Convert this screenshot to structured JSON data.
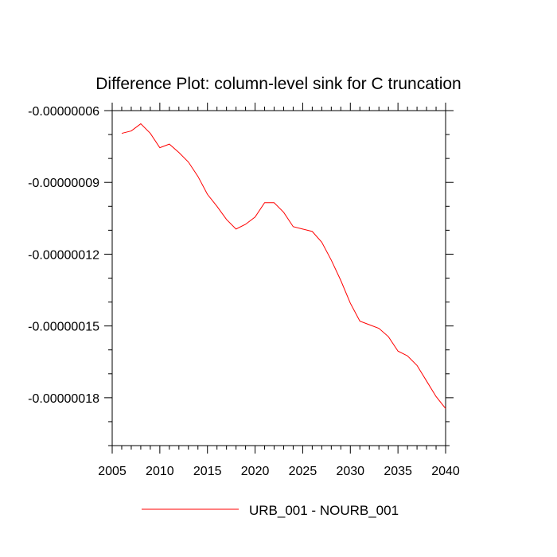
{
  "chart_data": {
    "type": "line",
    "title": "Difference Plot: column-level sink for C truncation",
    "xlabel": "",
    "ylabel": "",
    "xlim": [
      2005,
      2040
    ],
    "ylim": [
      -2e-07,
      -6e-08
    ],
    "x_ticks": [
      2005,
      2010,
      2015,
      2020,
      2025,
      2030,
      2035,
      2040
    ],
    "x_tick_labels": [
      "2005",
      "2010",
      "2015",
      "2020",
      "2025",
      "2030",
      "2035",
      "2040"
    ],
    "y_ticks": [
      -6e-08,
      -9e-08,
      -1.2e-07,
      -1.5e-07,
      -1.8e-07
    ],
    "y_tick_labels": [
      "-0.00000006",
      "-0.00000009",
      "-0.00000012",
      "-0.00000015",
      "-0.00000018"
    ],
    "grid": false,
    "legend_position": "bottom",
    "series": [
      {
        "name": "URB_001 - NOURB_001",
        "color": "#ff0000",
        "x": [
          2006,
          2007,
          2008,
          2009,
          2010,
          2011,
          2012,
          2013,
          2014,
          2015,
          2016,
          2017,
          2018,
          2019,
          2020,
          2021,
          2022,
          2023,
          2024,
          2025,
          2026,
          2027,
          2028,
          2029,
          2030,
          2031,
          2032,
          2033,
          2034,
          2035,
          2036,
          2037,
          2038,
          2039,
          2040
        ],
        "y": [
          -6.95e-08,
          -6.85e-08,
          -6.55e-08,
          -6.95e-08,
          -7.55e-08,
          -7.4e-08,
          -7.75e-08,
          -8.15e-08,
          -8.75e-08,
          -9.5e-08,
          -1e-07,
          -1.055e-07,
          -1.095e-07,
          -1.075e-07,
          -1.045e-07,
          -9.85e-08,
          -9.85e-08,
          -1.025e-07,
          -1.085e-07,
          -1.095e-07,
          -1.105e-07,
          -1.15e-07,
          -1.225e-07,
          -1.31e-07,
          -1.405e-07,
          -1.48e-07,
          -1.495e-07,
          -1.51e-07,
          -1.545e-07,
          -1.605e-07,
          -1.625e-07,
          -1.665e-07,
          -1.73e-07,
          -1.795e-07,
          -1.845e-07
        ]
      }
    ]
  }
}
